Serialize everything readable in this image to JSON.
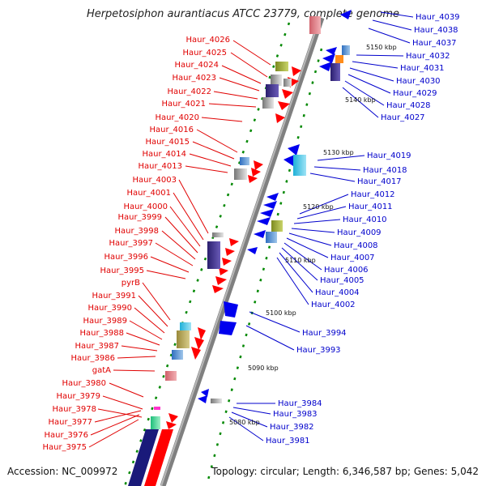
{
  "title": "Herpetosiphon aurantiacus ATCC 23779, complete genome",
  "footer": {
    "accession": "Accession: NC_009972",
    "summary": "Topology: circular; Length: 6,346,587 bp; Genes: 5,042"
  },
  "colors": {
    "forward_label": "#e00000",
    "reverse_label": "#0000cc",
    "backbone": "#808080",
    "tick": "#008800",
    "forward_gene": "#ff0000",
    "reverse_gene": "#0000ee",
    "rrna": "#1a1a7a"
  },
  "scale": [
    "5150 kbp",
    "5140 kbp",
    "5130 kbp",
    "5120 kbp",
    "5110 kbp",
    "5100 kbp",
    "5090 kbp",
    "5080 kbp"
  ],
  "left_labels": [
    "Haur_4026",
    "Haur_4025",
    "Haur_4024",
    "Haur_4023",
    "Haur_4022",
    "Haur_4021",
    "Haur_4020",
    "Haur_4016",
    "Haur_4015",
    "Haur_4014",
    "Haur_4013",
    "Haur_4003",
    "Haur_4001",
    "Haur_4000",
    "Haur_3999",
    "Haur_3998",
    "Haur_3997",
    "Haur_3996",
    "Haur_3995",
    "pyrB",
    "Haur_3991",
    "Haur_3990",
    "Haur_3989",
    "Haur_3988",
    "Haur_3987",
    "Haur_3986",
    "gatA",
    "Haur_3980",
    "Haur_3979",
    "Haur_3978",
    "Haur_3977",
    "Haur_3976",
    "Haur_3975"
  ],
  "right_labels": [
    "Haur_4039",
    "Haur_4038",
    "Haur_4037",
    "Haur_4032",
    "Haur_4031",
    "Haur_4030",
    "Haur_4029",
    "Haur_4028",
    "Haur_4027",
    "Haur_4019",
    "Haur_4018",
    "Haur_4017",
    "Haur_4012",
    "Haur_4011",
    "Haur_4010",
    "Haur_4009",
    "Haur_4008",
    "Haur_4007",
    "Haur_4006",
    "Haur_4005",
    "Haur_4004",
    "Haur_4002",
    "Haur_3994",
    "Haur_3993",
    "Haur_3984",
    "Haur_3983",
    "Haur_3982",
    "Haur_3981"
  ]
}
